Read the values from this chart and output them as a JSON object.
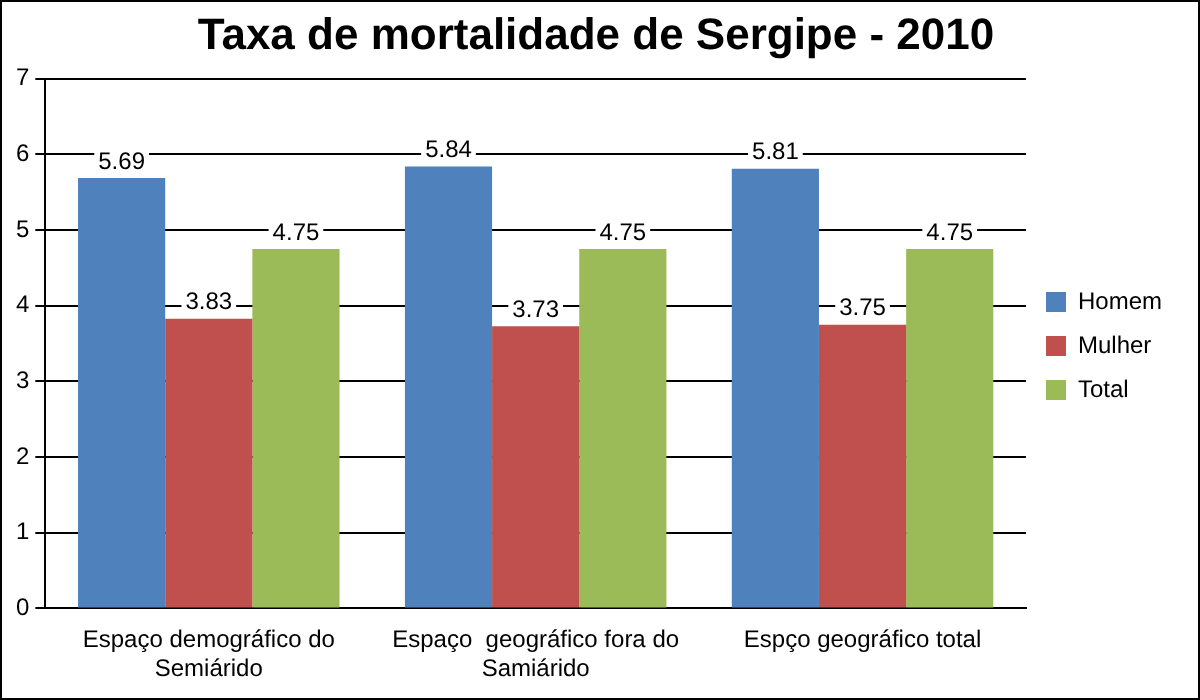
{
  "chart_data": {
    "type": "bar",
    "title": "Taxa de mortalidade de Sergipe - 2010",
    "categories": [
      "Espaço demográfico do Semiárido",
      "Espaço  geográfico fora do Samiárido",
      "Espço geográfico total"
    ],
    "series": [
      {
        "name": "Homem",
        "color": "#4f81bd",
        "values": [
          5.69,
          5.84,
          5.81
        ]
      },
      {
        "name": "Mulher",
        "color": "#c0504d",
        "values": [
          3.83,
          3.73,
          3.75
        ]
      },
      {
        "name": "Total",
        "color": "#9bbb59",
        "values": [
          4.75,
          4.75,
          4.75
        ]
      }
    ],
    "ylim": [
      0,
      7
    ],
    "yticks": [
      0,
      1,
      2,
      3,
      4,
      5,
      6,
      7
    ],
    "grid": "y",
    "legend": "right",
    "data_labels": true
  }
}
